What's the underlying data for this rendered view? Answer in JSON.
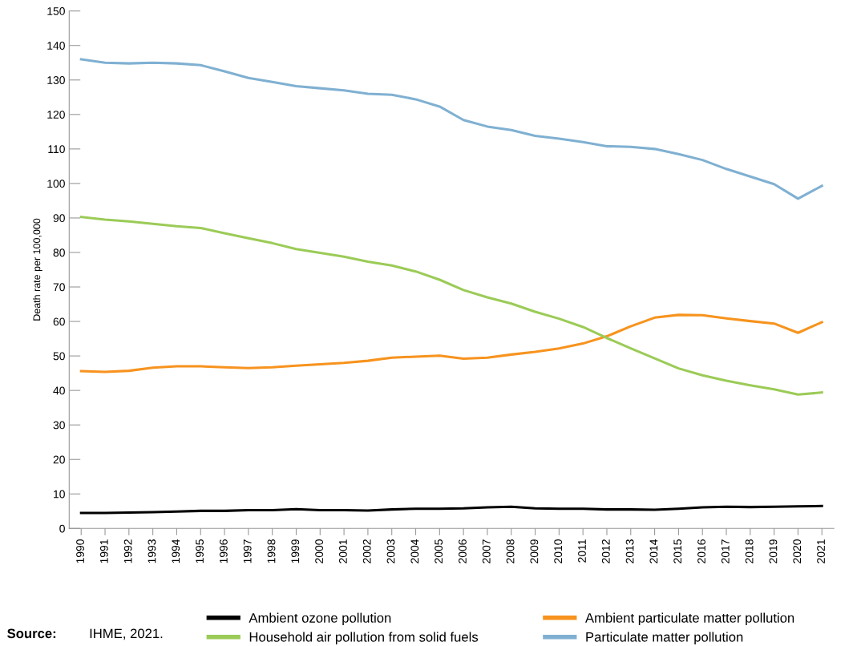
{
  "chart_data": {
    "type": "line",
    "ylabel": "Death rate per 100,000",
    "categories": [
      "1990",
      "1991",
      "1992",
      "1993",
      "1994",
      "1995",
      "1996",
      "1997",
      "1998",
      "1999",
      "2000",
      "2001",
      "2002",
      "2003",
      "2004",
      "2005",
      "2006",
      "2007",
      "2008",
      "2009",
      "2010",
      "2011",
      "2012",
      "2013",
      "2014",
      "2015",
      "2016",
      "2017",
      "2018",
      "2019",
      "2020",
      "2021"
    ],
    "series": [
      {
        "name": "Ambient ozone pollution",
        "color": "#000000",
        "values": [
          4.5,
          4.5,
          4.6,
          4.7,
          4.9,
          5.1,
          5.1,
          5.3,
          5.3,
          5.6,
          5.3,
          5.3,
          5.2,
          5.5,
          5.7,
          5.7,
          5.8,
          6.1,
          6.3,
          5.8,
          5.7,
          5.7,
          5.5,
          5.5,
          5.4,
          5.7,
          6.1,
          6.3,
          6.2,
          6.3,
          6.4,
          6.5
        ]
      },
      {
        "name": "Ambient particulate matter pollution",
        "color": "#f7931e",
        "values": [
          45.6,
          45.4,
          45.7,
          46.6,
          47,
          47,
          46.7,
          46.5,
          46.7,
          47.2,
          47.6,
          48,
          48.6,
          49.5,
          49.8,
          50.1,
          49.2,
          49.5,
          50.4,
          51.2,
          52.2,
          53.6,
          55.7,
          58.6,
          61.1,
          61.9,
          61.8,
          60.9,
          60.1,
          59.4,
          56.7,
          59.8
        ]
      },
      {
        "name": "Household air pollution from solid fuels",
        "color": "#9bcb57",
        "values": [
          90.3,
          89.5,
          89,
          88.3,
          87.6,
          87.1,
          85.6,
          84.1,
          82.7,
          81,
          79.9,
          78.8,
          77.3,
          76.2,
          74.5,
          72.1,
          69.1,
          67,
          65.2,
          62.8,
          60.8,
          58.4,
          55.2,
          52.2,
          49.3,
          46.4,
          44.4,
          42.8,
          41.5,
          40.3,
          38.8,
          39.4
        ]
      },
      {
        "name": "Particulate matter pollution",
        "color": "#7fb0d2",
        "values": [
          136,
          135,
          134.8,
          135,
          134.8,
          134.3,
          132.5,
          130.6,
          129.4,
          128.2,
          127.6,
          127,
          126,
          125.7,
          124.4,
          122.3,
          118.4,
          116.5,
          115.5,
          113.8,
          113,
          112,
          110.8,
          110.6,
          110,
          108.5,
          106.8,
          104.2,
          102,
          99.8,
          95.6,
          99.3
        ]
      }
    ],
    "ylim": [
      0,
      150
    ],
    "yticks": [
      0,
      10,
      20,
      30,
      40,
      50,
      60,
      70,
      80,
      90,
      100,
      110,
      120,
      130,
      140,
      150
    ],
    "grid": false,
    "legend": "bottom",
    "marker": "none",
    "line_style": "solid",
    "annotations": [
      "Source:",
      "IHME, 2021."
    ]
  }
}
